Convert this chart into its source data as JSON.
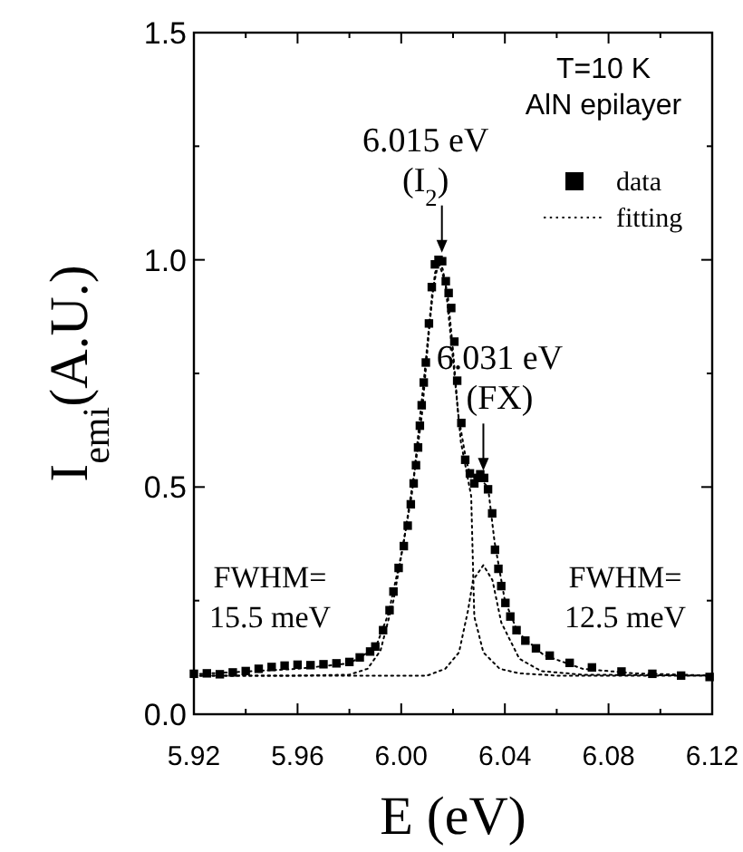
{
  "chart_data": {
    "type": "scatter",
    "xlabel": "E (eV)",
    "ylabel": "I$_{emi}$(A.U.)",
    "xlim": [
      5.92,
      6.12
    ],
    "ylim": [
      0,
      1.5
    ],
    "xticks": [
      5.92,
      {
        "value": 5.94,
        "label": null
      },
      5.96,
      {
        "value": 5.98,
        "label": null
      },
      {
        "value": 6.0,
        "label": "6.00"
      },
      {
        "value": 6.02,
        "label": null
      },
      6.04,
      {
        "value": 6.06,
        "label": null
      },
      6.08,
      {
        "value": 6.1,
        "label": null
      },
      6.12
    ],
    "yticks": [
      {
        "value": 0,
        "label": "0.0"
      },
      {
        "value": 0.25,
        "label": null
      },
      0.5,
      {
        "value": 0.75,
        "label": null
      },
      {
        "value": 1,
        "label": "1.0"
      },
      {
        "value": 1.25,
        "label": null
      },
      1.5
    ],
    "legend": "top right",
    "grid": false,
    "series": [
      {
        "name": "data",
        "marker": "square",
        "color": "#000000",
        "x": [
          5.92,
          5.925,
          5.93,
          5.935,
          5.94,
          5.945,
          5.95,
          5.955,
          5.96,
          5.965,
          5.97,
          5.975,
          5.98,
          5.984,
          5.988,
          5.99,
          5.993,
          5.9955,
          5.997,
          5.999,
          6.001,
          6.0025,
          6.0037,
          6.0048,
          6.0057,
          6.0065,
          6.0072,
          6.0079,
          6.0087,
          6.0095,
          6.0107,
          6.0118,
          6.013,
          6.0144,
          6.0158,
          6.0172,
          6.0183,
          6.0193,
          6.0205,
          6.0216,
          6.0232,
          6.0247,
          6.0265,
          6.0282,
          6.0295,
          6.0305,
          6.032,
          6.0335,
          6.0351,
          6.0362,
          6.0375,
          6.0386,
          6.0402,
          6.0421,
          6.0445,
          6.0479,
          6.052,
          6.0573,
          6.065,
          6.0736,
          6.085,
          6.0969,
          6.108,
          6.119
        ],
        "values": [
          0.089,
          0.09,
          0.088,
          0.092,
          0.095,
          0.1,
          0.104,
          0.107,
          0.109,
          0.108,
          0.11,
          0.112,
          0.115,
          0.125,
          0.138,
          0.149,
          0.185,
          0.229,
          0.27,
          0.322,
          0.37,
          0.415,
          0.462,
          0.508,
          0.548,
          0.587,
          0.635,
          0.68,
          0.73,
          0.774,
          0.86,
          0.94,
          0.99,
          1.0,
          0.997,
          0.953,
          0.927,
          0.894,
          0.82,
          0.734,
          0.641,
          0.56,
          0.53,
          0.508,
          0.52,
          0.528,
          0.52,
          0.495,
          0.442,
          0.362,
          0.32,
          0.282,
          0.245,
          0.215,
          0.185,
          0.162,
          0.145,
          0.129,
          0.113,
          0.103,
          0.094,
          0.089,
          0.085,
          0.082
        ]
      },
      {
        "name": "fitting",
        "type": "line",
        "marker": "none",
        "line_style": "dotted",
        "color": "#000000",
        "x": [
          5.92,
          5.96,
          5.98,
          5.99,
          5.995,
          6.0,
          6.004,
          6.008,
          6.011,
          6.013,
          6.0144,
          6.016,
          6.018,
          6.02,
          6.022,
          6.025,
          6.027,
          6.03,
          6.0335,
          6.036,
          6.04,
          6.045,
          6.055,
          6.07,
          6.09,
          6.12
        ],
        "values": [
          0.088,
          0.1,
          0.112,
          0.145,
          0.22,
          0.35,
          0.48,
          0.66,
          0.86,
          0.97,
          0.995,
          0.98,
          0.92,
          0.8,
          0.66,
          0.56,
          0.52,
          0.52,
          0.5,
          0.38,
          0.25,
          0.18,
          0.13,
          0.1,
          0.09,
          0.085
        ]
      },
      {
        "type": "line",
        "marker": "none",
        "line_style": "dotted",
        "color": "#000000",
        "x": [
          5.92,
          5.96,
          5.98,
          5.987,
          5.992,
          5.997,
          6.001,
          6.005,
          6.009,
          6.012,
          6.0144,
          6.017,
          6.02,
          6.023,
          6.027,
          6.0282,
          6.0317,
          6.038,
          6.0456,
          6.06,
          6.12
        ],
        "values": [
          0.085,
          0.085,
          0.087,
          0.1,
          0.14,
          0.25,
          0.38,
          0.53,
          0.75,
          0.93,
          0.995,
          0.95,
          0.78,
          0.6,
          0.48,
          0.215,
          0.136,
          0.1,
          0.09,
          0.085,
          0.085
        ]
      },
      {
        "type": "line",
        "marker": "none",
        "line_style": "dotted",
        "color": "#000000",
        "x": [
          5.92,
          6.01,
          6.017,
          6.0223,
          6.0258,
          6.0277,
          6.0317,
          6.0352,
          6.0386,
          6.0456,
          6.054,
          6.07,
          6.12
        ],
        "values": [
          0.085,
          0.085,
          0.1,
          0.136,
          0.229,
          0.295,
          0.328,
          0.295,
          0.202,
          0.122,
          0.095,
          0.087,
          0.085
        ]
      }
    ],
    "annotations": [
      {
        "text": "6.015 eV\n(I$_{2}$)",
        "x": 6.015,
        "y": 1.0
      },
      {
        "text": "6.031 eV\n(FX)",
        "x": 6.031,
        "y": 0.52
      },
      "T=10 K",
      "AlN epilayer",
      "FWHM=\n15.5 meV",
      "FWHM=\n12.5 meV"
    ]
  }
}
